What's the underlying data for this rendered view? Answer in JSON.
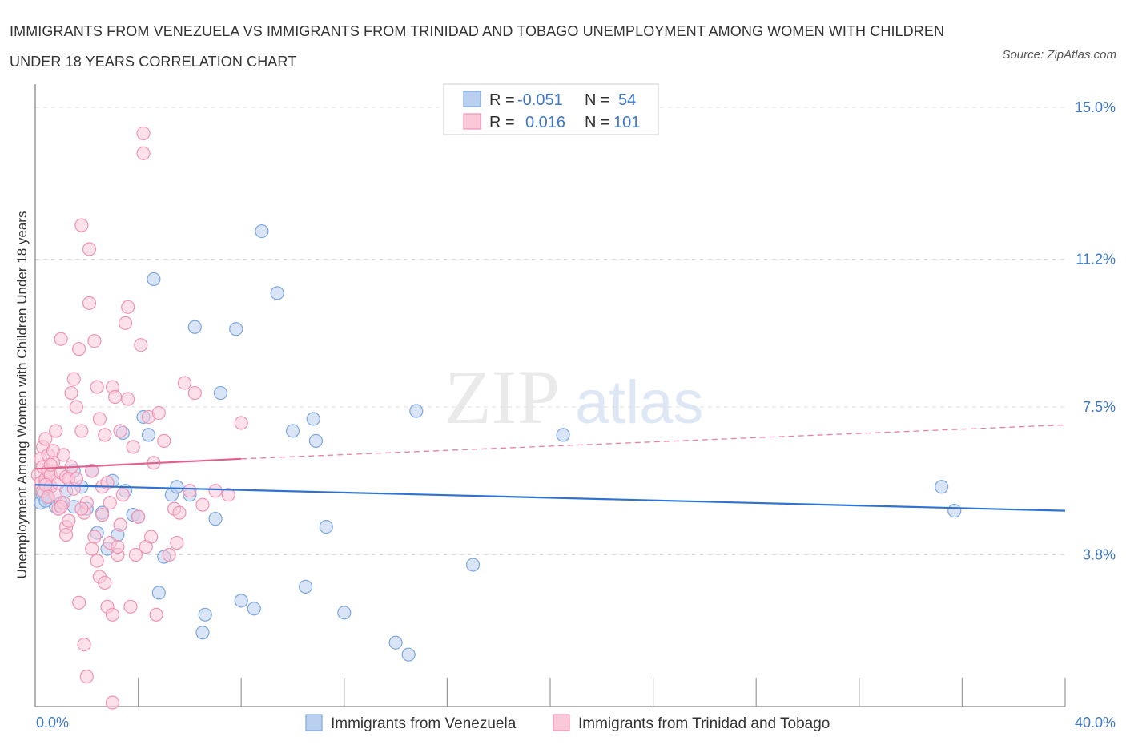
{
  "title": "IMMIGRANTS FROM VENEZUELA VS IMMIGRANTS FROM TRINIDAD AND TOBAGO UNEMPLOYMENT AMONG WOMEN WITH CHILDREN UNDER 18 YEARS CORRELATION CHART",
  "source": "Source: ZipAtlas.com",
  "watermark": {
    "zip": "ZIP",
    "atlas": "atlas"
  },
  "chart_data": {
    "type": "scatter",
    "title": "IMMIGRANTS FROM VENEZUELA VS IMMIGRANTS FROM TRINIDAD AND TOBAGO UNEMPLOYMENT AMONG WOMEN WITH CHILDREN UNDER 18 YEARS CORRELATION CHART",
    "xlabel": "",
    "ylabel": "Unemployment Among Women with Children Under 18 years",
    "xlim": [
      0,
      40
    ],
    "ylim": [
      0,
      15
    ],
    "x_tick_labels": [
      "0.0%",
      "40.0%"
    ],
    "y_ticks": [
      3.8,
      7.5,
      11.2,
      15.0
    ],
    "y_tick_labels": [
      "3.8%",
      "7.5%",
      "11.2%",
      "15.0%"
    ],
    "grid": true,
    "legend": {
      "placement": "top-center",
      "rows": [
        {
          "r_label": "R =",
          "r_value": "-0.051",
          "n_label": "N =",
          "n_value": "54"
        },
        {
          "r_label": "R =",
          "r_value": "0.016",
          "n_label": "N =",
          "n_value": "101"
        }
      ]
    },
    "series": [
      {
        "name": "Immigrants from Venezuela",
        "color": "#7ba7e0",
        "fill": "#b9d0f0",
        "trendline": {
          "x": [
            0,
            40
          ],
          "y": [
            5.55,
            4.9
          ],
          "color": "#2f72d0",
          "style": "solid"
        },
        "points": [
          [
            0.2,
            5.1
          ],
          [
            0.3,
            5.3
          ],
          [
            0.4,
            5.6
          ],
          [
            0.5,
            5.2
          ],
          [
            0.6,
            5.5
          ],
          [
            0.8,
            5.0
          ],
          [
            1.0,
            5.1
          ],
          [
            1.2,
            5.4
          ],
          [
            1.5,
            5.9
          ],
          [
            1.5,
            5.0
          ],
          [
            1.8,
            5.5
          ],
          [
            2.0,
            4.95
          ],
          [
            2.2,
            5.9
          ],
          [
            2.4,
            4.35
          ],
          [
            2.6,
            4.85
          ],
          [
            2.8,
            3.95
          ],
          [
            3.0,
            5.65
          ],
          [
            3.2,
            4.3
          ],
          [
            3.4,
            6.85
          ],
          [
            3.5,
            5.4
          ],
          [
            3.8,
            4.8
          ],
          [
            4.0,
            4.75
          ],
          [
            4.2,
            7.25
          ],
          [
            4.4,
            6.8
          ],
          [
            4.6,
            10.7
          ],
          [
            4.8,
            2.85
          ],
          [
            5.0,
            3.75
          ],
          [
            5.3,
            5.3
          ],
          [
            5.5,
            5.5
          ],
          [
            6.0,
            5.3
          ],
          [
            6.2,
            9.5
          ],
          [
            6.5,
            1.85
          ],
          [
            6.6,
            2.3
          ],
          [
            7.0,
            4.7
          ],
          [
            7.2,
            7.85
          ],
          [
            7.8,
            9.45
          ],
          [
            8.0,
            2.65
          ],
          [
            8.5,
            2.45
          ],
          [
            8.8,
            11.9
          ],
          [
            9.4,
            10.35
          ],
          [
            10.0,
            6.9
          ],
          [
            10.5,
            3.0
          ],
          [
            10.8,
            7.2
          ],
          [
            10.9,
            6.65
          ],
          [
            11.3,
            4.5
          ],
          [
            12.0,
            2.35
          ],
          [
            14.0,
            1.6
          ],
          [
            14.5,
            1.3
          ],
          [
            14.8,
            7.4
          ],
          [
            17.0,
            3.55
          ],
          [
            20.5,
            6.8
          ],
          [
            35.2,
            5.5
          ],
          [
            35.7,
            4.9
          ],
          [
            0.4,
            5.15
          ]
        ]
      },
      {
        "name": "Immigrants from Trinidad and Tobago",
        "color": "#ef93b3",
        "fill": "#f9c9d9",
        "trendline": {
          "x": [
            0,
            8
          ],
          "y": [
            5.95,
            6.2
          ],
          "color": "#e0608e",
          "style": "solid",
          "extension": {
            "x": [
              8,
              40
            ],
            "y": [
              6.2,
              7.05
            ],
            "style": "dashed"
          }
        },
        "points": [
          [
            0.1,
            5.8
          ],
          [
            0.2,
            6.2
          ],
          [
            0.2,
            5.6
          ],
          [
            0.3,
            6.5
          ],
          [
            0.3,
            5.4
          ],
          [
            0.3,
            6.0
          ],
          [
            0.4,
            6.7
          ],
          [
            0.4,
            5.7
          ],
          [
            0.5,
            5.9
          ],
          [
            0.5,
            6.3
          ],
          [
            0.6,
            5.5
          ],
          [
            0.6,
            5.8
          ],
          [
            0.7,
            6.4
          ],
          [
            0.7,
            6.1
          ],
          [
            0.8,
            5.3
          ],
          [
            0.8,
            6.9
          ],
          [
            0.9,
            5.6
          ],
          [
            0.9,
            4.95
          ],
          [
            1.0,
            5.85
          ],
          [
            1.0,
            9.2
          ],
          [
            1.1,
            6.3
          ],
          [
            1.1,
            5.1
          ],
          [
            1.2,
            5.75
          ],
          [
            1.2,
            4.5
          ],
          [
            1.3,
            4.65
          ],
          [
            1.3,
            5.7
          ],
          [
            1.4,
            6.0
          ],
          [
            1.4,
            7.85
          ],
          [
            1.5,
            8.2
          ],
          [
            1.5,
            5.45
          ],
          [
            1.6,
            5.7
          ],
          [
            1.6,
            7.5
          ],
          [
            1.7,
            8.95
          ],
          [
            1.7,
            2.6
          ],
          [
            1.8,
            12.05
          ],
          [
            1.8,
            6.9
          ],
          [
            1.9,
            4.85
          ],
          [
            1.9,
            1.55
          ],
          [
            2.0,
            5.1
          ],
          [
            2.0,
            0.75
          ],
          [
            2.1,
            11.45
          ],
          [
            2.1,
            10.1
          ],
          [
            2.2,
            3.95
          ],
          [
            2.3,
            4.25
          ],
          [
            2.3,
            9.15
          ],
          [
            2.4,
            3.65
          ],
          [
            2.4,
            8.0
          ],
          [
            2.5,
            7.2
          ],
          [
            2.5,
            3.25
          ],
          [
            2.6,
            5.5
          ],
          [
            2.7,
            6.8
          ],
          [
            2.7,
            3.1
          ],
          [
            2.8,
            2.5
          ],
          [
            2.9,
            5.1
          ],
          [
            2.9,
            4.1
          ],
          [
            3.0,
            8.0
          ],
          [
            3.0,
            2.3
          ],
          [
            3.1,
            7.75
          ],
          [
            3.2,
            3.8
          ],
          [
            3.3,
            6.9
          ],
          [
            3.3,
            4.55
          ],
          [
            3.4,
            5.3
          ],
          [
            3.5,
            9.6
          ],
          [
            3.6,
            10.0
          ],
          [
            3.6,
            7.7
          ],
          [
            3.7,
            2.5
          ],
          [
            3.8,
            6.5
          ],
          [
            3.9,
            3.8
          ],
          [
            4.0,
            4.75
          ],
          [
            4.1,
            9.05
          ],
          [
            4.2,
            13.85
          ],
          [
            4.3,
            4.0
          ],
          [
            4.4,
            7.25
          ],
          [
            4.5,
            4.25
          ],
          [
            4.6,
            6.1
          ],
          [
            4.7,
            2.3
          ],
          [
            4.8,
            7.35
          ],
          [
            5.0,
            6.65
          ],
          [
            5.2,
            3.8
          ],
          [
            5.4,
            4.95
          ],
          [
            5.5,
            4.1
          ],
          [
            5.6,
            4.85
          ],
          [
            5.8,
            8.1
          ],
          [
            6.0,
            5.4
          ],
          [
            6.2,
            7.85
          ],
          [
            6.5,
            5.05
          ],
          [
            7.0,
            5.4
          ],
          [
            7.5,
            5.3
          ],
          [
            8.0,
            7.1
          ],
          [
            0.4,
            5.55
          ],
          [
            0.6,
            6.05
          ],
          [
            1.2,
            4.3
          ],
          [
            1.8,
            4.95
          ],
          [
            2.2,
            5.9
          ],
          [
            2.6,
            4.8
          ],
          [
            3.2,
            4.0
          ],
          [
            4.2,
            14.35
          ],
          [
            3.0,
            0.1
          ],
          [
            1.0,
            5.0
          ],
          [
            0.5,
            5.25
          ],
          [
            2.8,
            5.6
          ]
        ]
      }
    ]
  }
}
